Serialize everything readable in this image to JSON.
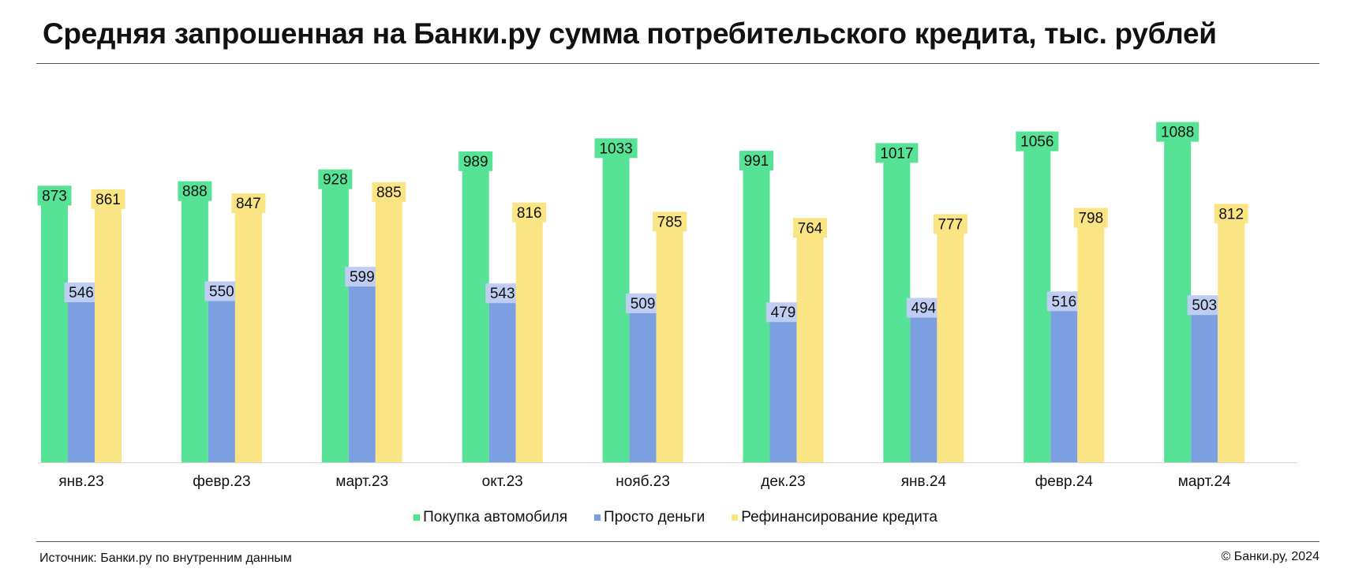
{
  "title": "Средняя запрошенная на Банки.ру сумма потребительского кредита, тыс. рублей",
  "footer": {
    "source": "Источник: Банки.ру по внутренним данным",
    "copyright": "© Банки.ру, 2024"
  },
  "colors": {
    "auto": "#56E396",
    "money": "#7B9FE0",
    "refi": "#FAE483",
    "auto_label_bg": "#56E396",
    "money_label_bg": "#BFCDF2",
    "refi_label_bg": "#FAE483",
    "axis": "#D6D6D6"
  },
  "chart_data": {
    "type": "bar",
    "title": "Средняя запрошенная на Банки.ру сумма потребительского кредита, тыс. рублей",
    "xlabel": "",
    "ylabel": "",
    "ylim": [
      0,
      1200
    ],
    "grid": false,
    "legend_position": "bottom",
    "categories": [
      "янв.23",
      "февр.23",
      "март.23",
      "окт.23",
      "нояб.23",
      "дек.23",
      "янв.24",
      "февр.24",
      "март.24"
    ],
    "series": [
      {
        "name": "Покупка автомобиля",
        "color": "#56E396",
        "values": [
          873,
          888,
          928,
          989,
          1033,
          991,
          1017,
          1056,
          1088
        ]
      },
      {
        "name": "Просто деньги",
        "color": "#7B9FE0",
        "values": [
          546,
          550,
          599,
          543,
          509,
          479,
          494,
          516,
          503
        ]
      },
      {
        "name": "Рефинансирование кредита",
        "color": "#FAE483",
        "values": [
          861,
          847,
          885,
          816,
          785,
          764,
          777,
          798,
          812
        ]
      }
    ]
  }
}
